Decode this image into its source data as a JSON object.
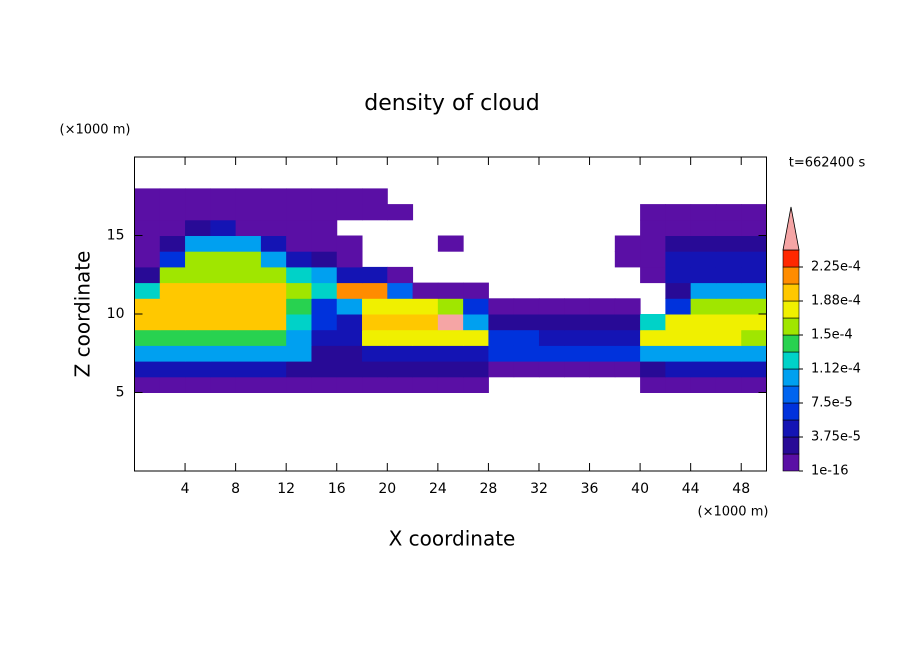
{
  "chart_data": {
    "type": "contour",
    "title": "density of cloud",
    "x_label": "X coordinate",
    "y_label": "Z coordinate",
    "x_unit": "(×1000 m)",
    "y_unit": "(×1000 m)",
    "annotation": "t=662400 s",
    "xlim": [
      0,
      50
    ],
    "xticks": [
      4,
      8,
      12,
      16,
      20,
      24,
      28,
      32,
      36,
      40,
      44,
      48
    ],
    "ylim": [
      0,
      20
    ],
    "yticks": [
      5,
      10,
      15
    ],
    "x": [
      1,
      3,
      5,
      7,
      9,
      11,
      13,
      15,
      17,
      19,
      21,
      23,
      25,
      27,
      29,
      31,
      33,
      35,
      37,
      39,
      41,
      43,
      45,
      47,
      49
    ],
    "y": [
      5.5,
      6.5,
      7.5,
      8.5,
      9.5,
      10.5,
      11.5,
      12.5,
      13.5,
      14.5,
      15.5,
      16.5,
      17.5
    ],
    "z": [
      [
        1e-16,
        1e-16,
        1e-16,
        1e-16,
        1e-16,
        1e-16,
        1e-16,
        1e-16,
        1e-16,
        1e-16,
        1e-16,
        1e-16,
        1e-16,
        1e-16,
        null,
        null,
        null,
        null,
        null,
        null,
        1e-16,
        1e-16,
        1e-16,
        1e-16,
        1e-16
      ],
      [
        5e-05,
        5e-05,
        5e-05,
        5e-05,
        5e-05,
        5e-05,
        3e-05,
        2e-05,
        2e-05,
        2e-05,
        2e-05,
        2e-05,
        2e-05,
        2e-05,
        1e-16,
        1e-16,
        1e-16,
        1e-16,
        1e-16,
        1e-16,
        2e-05,
        5e-05,
        5e-05,
        5e-05,
        5e-05
      ],
      [
        0.00011,
        0.00011,
        0.00011,
        0.00011,
        0.00011,
        0.00011,
        0.0001,
        3e-05,
        3e-05,
        4e-05,
        4e-05,
        4e-05,
        4e-05,
        4e-05,
        6e-05,
        6e-05,
        6e-05,
        6e-05,
        6e-05,
        6e-05,
        0.00011,
        0.00011,
        0.00011,
        0.00011,
        0.00011
      ],
      [
        0.00014,
        0.00014,
        0.00014,
        0.00014,
        0.00014,
        0.00014,
        0.0001,
        4e-05,
        4e-05,
        0.00018,
        0.00018,
        0.00018,
        0.00018,
        0.00018,
        6e-05,
        6e-05,
        4e-05,
        4e-05,
        4e-05,
        4e-05,
        0.00018,
        0.00018,
        0.00018,
        0.00018,
        0.00015
      ],
      [
        0.00019,
        0.00019,
        0.00019,
        0.00019,
        0.00019,
        0.00019,
        0.00013,
        6e-05,
        5e-05,
        0.0002,
        0.0002,
        0.0002,
        0.000245,
        0.0001,
        2e-05,
        2e-05,
        2e-05,
        2e-05,
        2e-05,
        2e-05,
        0.00012,
        0.00018,
        0.00018,
        0.00018,
        0.00018
      ],
      [
        0.0002,
        0.0002,
        0.0002,
        0.0002,
        0.0002,
        0.0002,
        0.00014,
        7e-05,
        0.0001,
        0.00018,
        0.00018,
        0.00018,
        0.00016,
        6e-05,
        1e-16,
        1e-16,
        1e-16,
        1e-16,
        1e-16,
        1e-16,
        null,
        6e-05,
        0.00016,
        0.00016,
        0.00016
      ],
      [
        0.00012,
        0.00019,
        0.00019,
        0.00019,
        0.00019,
        0.00019,
        0.00015,
        0.00012,
        0.00022,
        0.00022,
        9e-05,
        1e-16,
        1e-16,
        1e-16,
        null,
        null,
        null,
        null,
        null,
        null,
        null,
        3e-05,
        0.00011,
        0.00011,
        0.00011
      ],
      [
        2e-05,
        0.00016,
        0.00016,
        0.00016,
        0.00016,
        0.00016,
        0.00013,
        0.0001,
        5e-05,
        5e-05,
        1e-16,
        null,
        null,
        null,
        null,
        null,
        null,
        null,
        null,
        null,
        1e-16,
        5e-05,
        5e-05,
        5e-05,
        5e-05
      ],
      [
        1e-16,
        6e-05,
        0.00015,
        0.00015,
        0.00015,
        0.0001,
        5e-05,
        2e-05,
        1e-16,
        null,
        null,
        null,
        null,
        null,
        null,
        null,
        null,
        null,
        null,
        1e-16,
        1e-16,
        4e-05,
        4e-05,
        4e-05,
        4e-05
      ],
      [
        1e-16,
        3e-05,
        0.0001,
        0.0001,
        0.0001,
        5e-05,
        1e-16,
        1e-16,
        1e-16,
        null,
        null,
        null,
        1e-16,
        null,
        null,
        null,
        null,
        null,
        null,
        1e-16,
        1e-16,
        3e-05,
        3e-05,
        3e-05,
        3e-05
      ],
      [
        1e-16,
        1e-16,
        3e-05,
        5e-05,
        1e-16,
        1e-16,
        1e-16,
        1e-16,
        null,
        null,
        null,
        null,
        null,
        null,
        null,
        null,
        null,
        null,
        null,
        null,
        1e-16,
        1e-16,
        1e-16,
        1e-16,
        1e-16
      ],
      [
        1e-16,
        1e-16,
        1e-16,
        1e-16,
        1e-16,
        1e-16,
        1e-16,
        1e-16,
        1e-16,
        1e-16,
        1e-16,
        null,
        null,
        null,
        null,
        null,
        null,
        null,
        null,
        null,
        1e-16,
        1e-16,
        1e-16,
        1e-16,
        1e-16
      ],
      [
        1e-16,
        1e-16,
        1e-16,
        1e-16,
        1e-16,
        1e-16,
        1e-16,
        1e-16,
        1e-16,
        1e-16,
        null,
        null,
        null,
        null,
        null,
        null,
        null,
        null,
        null,
        null,
        null,
        null,
        null,
        null,
        null
      ]
    ],
    "colorbar": {
      "levels": [
        1e-16,
        1.875e-05,
        3.75e-05,
        5.625e-05,
        7.5e-05,
        9.375e-05,
        0.0001125,
        0.00013125,
        0.00015,
        0.00016875,
        0.0001875,
        0.00020625,
        0.000225,
        0.00024375
      ],
      "colors": [
        "#5a0fa5",
        "#280a96",
        "#1414b4",
        "#0032dc",
        "#0064f0",
        "#00a0f0",
        "#00d2c8",
        "#28d250",
        "#a0e600",
        "#f0f000",
        "#ffc800",
        "#ff8c00",
        "#ff2800",
        "#f5a5a5"
      ],
      "ticks": [
        {
          "value": 1e-16,
          "label": "1e-16"
        },
        {
          "value": 3.75e-05,
          "label": "3.75e-5"
        },
        {
          "value": 7.5e-05,
          "label": "7.5e-5"
        },
        {
          "value": 0.0001125,
          "label": "1.12e-4"
        },
        {
          "value": 0.00015,
          "label": "1.5e-4"
        },
        {
          "value": 0.0001875,
          "label": "1.88e-4"
        },
        {
          "value": 0.000225,
          "label": "2.25e-4"
        }
      ]
    }
  }
}
